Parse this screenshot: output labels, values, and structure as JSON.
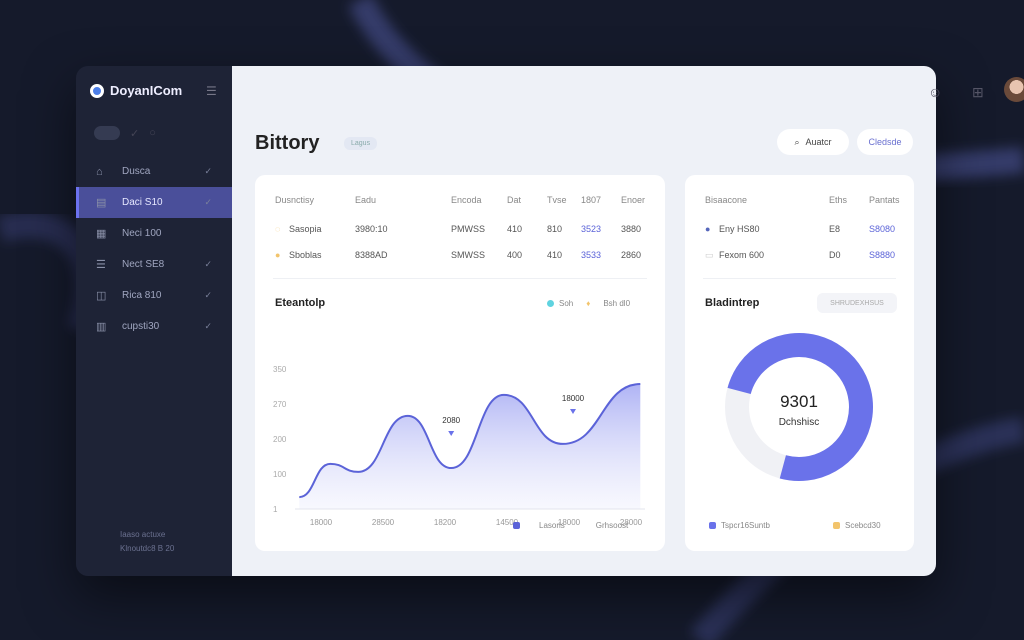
{
  "app": {
    "name": "DoyanICom"
  },
  "sidebar": {
    "items": [
      {
        "label": "Dusca",
        "icon": "home-icon",
        "active": false
      },
      {
        "label": "Daci S10",
        "icon": "calendar-icon",
        "active": true
      },
      {
        "label": "Neci 100",
        "icon": "document-icon",
        "active": false
      },
      {
        "label": "Nect SE8",
        "icon": "list-icon",
        "active": false
      },
      {
        "label": "Rica 810",
        "icon": "chart-box-icon",
        "active": false
      },
      {
        "label": "cupsti30",
        "icon": "bar-chart-icon",
        "active": false
      }
    ],
    "footer": [
      "Iaaso actuxe",
      "Klnoutdc8 B 20"
    ]
  },
  "header": {
    "title": "Bittory",
    "badge": "Lagus",
    "search_label": "Auatcr",
    "action_label": "Cledsde"
  },
  "table": {
    "headers": [
      "Dusnctisy",
      "Eadu",
      "Encoda",
      "Dat",
      "Tvse",
      "1807",
      "Enoer"
    ],
    "rows": [
      [
        "Sasopia",
        "3980:10",
        "PMWSS",
        "410",
        "810",
        "3523",
        "3880"
      ],
      [
        "Sboblas",
        "8388AD",
        "SMWSS",
        "400",
        "410",
        "3533",
        "2860"
      ]
    ]
  },
  "side_table": {
    "headers": [
      "Bisaacone",
      "Eths",
      "Pantats"
    ],
    "rows": [
      [
        "Eny HS80",
        "E8",
        "S8080"
      ],
      [
        "Fexom 600",
        "D0",
        "S8880"
      ]
    ]
  },
  "chart_data": {
    "type": "area",
    "title": "Eteantolp",
    "legend_top": [
      "Soh",
      "Bsh dl0"
    ],
    "legend_bottom": [
      "Lasorls",
      "Grhsoost"
    ],
    "categories": [
      "18000",
      "28500",
      "18200",
      "14500",
      "18000",
      "28000"
    ],
    "y_ticks": [
      "350",
      "270",
      "200",
      "100",
      "1"
    ],
    "ylim": [
      0,
      400
    ],
    "points": [
      [
        -0.35,
        34
      ],
      [
        0.15,
        129
      ],
      [
        0.6,
        106
      ],
      [
        1.4,
        266
      ],
      [
        2.1,
        117
      ],
      [
        2.95,
        326
      ],
      [
        3.9,
        186
      ],
      [
        5.15,
        357
      ]
    ],
    "annotations": [
      {
        "text": "2080",
        "x": 2.1
      },
      {
        "text": "18000",
        "x": 4.0
      }
    ],
    "color": "#5b63d8",
    "grid": false
  },
  "donut": {
    "title": "Bladintrep",
    "filter_label": "SHRUDEXHSUS",
    "value": "9301",
    "label": "Dchshisc",
    "fraction": 0.75,
    "legend": [
      "Tspcr16Suntb",
      "Scebcd30"
    ],
    "colors": [
      "#6a72ea",
      "#f0f1f5",
      "#f2c46c"
    ]
  }
}
